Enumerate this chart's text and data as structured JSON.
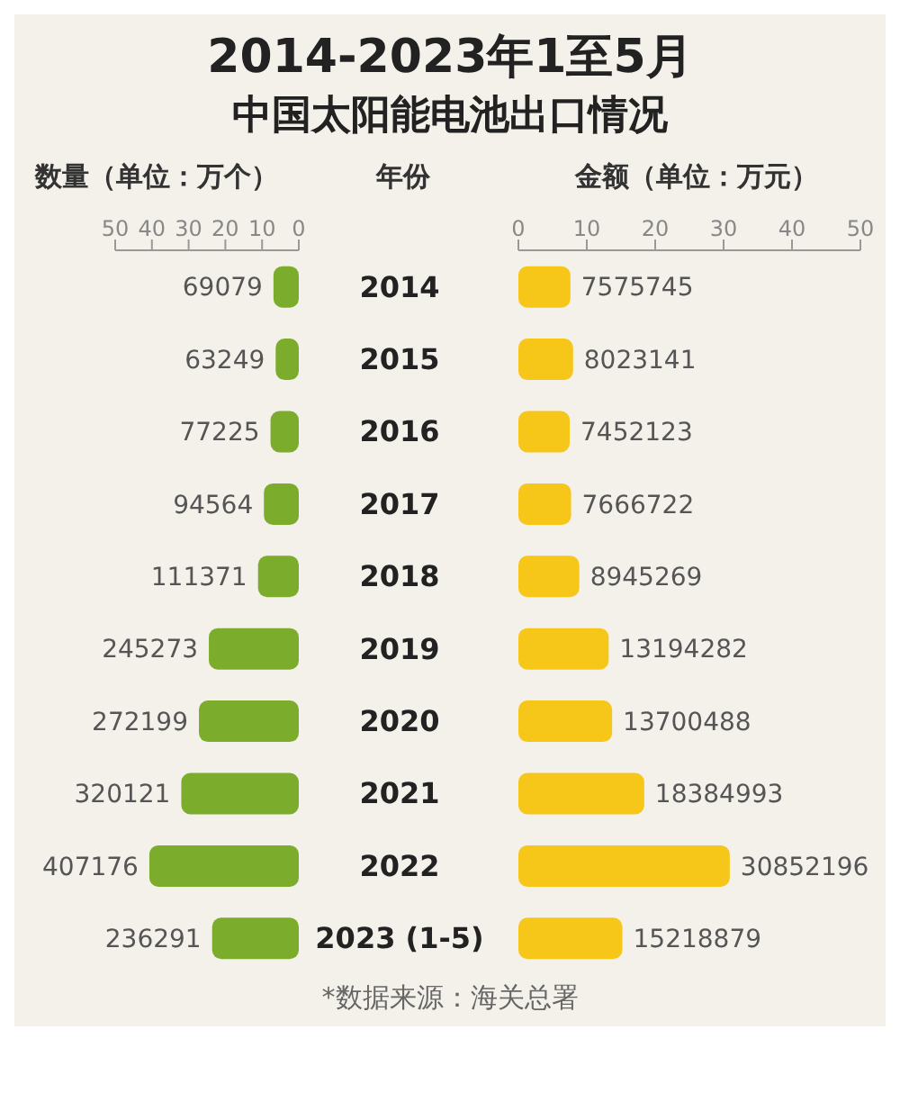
{
  "chart_data": [
    {
      "type": "bar",
      "orientation": "horizontal",
      "title": "2014-2023年1至5月",
      "subtitle": "中国太阳能电池出口情况",
      "xlabel": "数量（单位：万个）",
      "ylabel": "年份",
      "categories": [
        "2014",
        "2015",
        "2016",
        "2017",
        "2018",
        "2019",
        "2020",
        "2021",
        "2022",
        "2023 (1-5)"
      ],
      "series": [
        {
          "color": "#7cac2c",
          "values": [
            6.9,
            6.3,
            7.7,
            9.5,
            11.1,
            24.5,
            27.2,
            32.0,
            40.7,
            23.6
          ]
        }
      ],
      "value_labels": [
        "69079",
        "63249",
        "77225",
        "94564",
        "111371",
        "245273",
        "272199",
        "320121",
        "407176",
        "236291"
      ],
      "xlim": [
        50,
        0
      ],
      "xticks": [
        50,
        40,
        30,
        20,
        10,
        0
      ]
    },
    {
      "type": "bar",
      "orientation": "horizontal",
      "xlabel": "金额（单位：万元）",
      "series": [
        {
          "color": "#f6c619",
          "values": [
            7.6,
            8.0,
            7.5,
            7.7,
            8.9,
            13.2,
            13.7,
            18.4,
            30.9,
            15.2
          ]
        }
      ],
      "value_labels": [
        "7575745",
        "8023141",
        "7452123",
        "7666722",
        "8945269",
        "13194282",
        "13700488",
        "18384993",
        "30852196",
        "15218879"
      ],
      "xlim": [
        0,
        50
      ],
      "xticks": [
        0,
        10,
        20,
        30,
        40,
        50
      ],
      "tick_labels": "x",
      "annotations": [
        "*数据来源：海关总署"
      ]
    }
  ]
}
